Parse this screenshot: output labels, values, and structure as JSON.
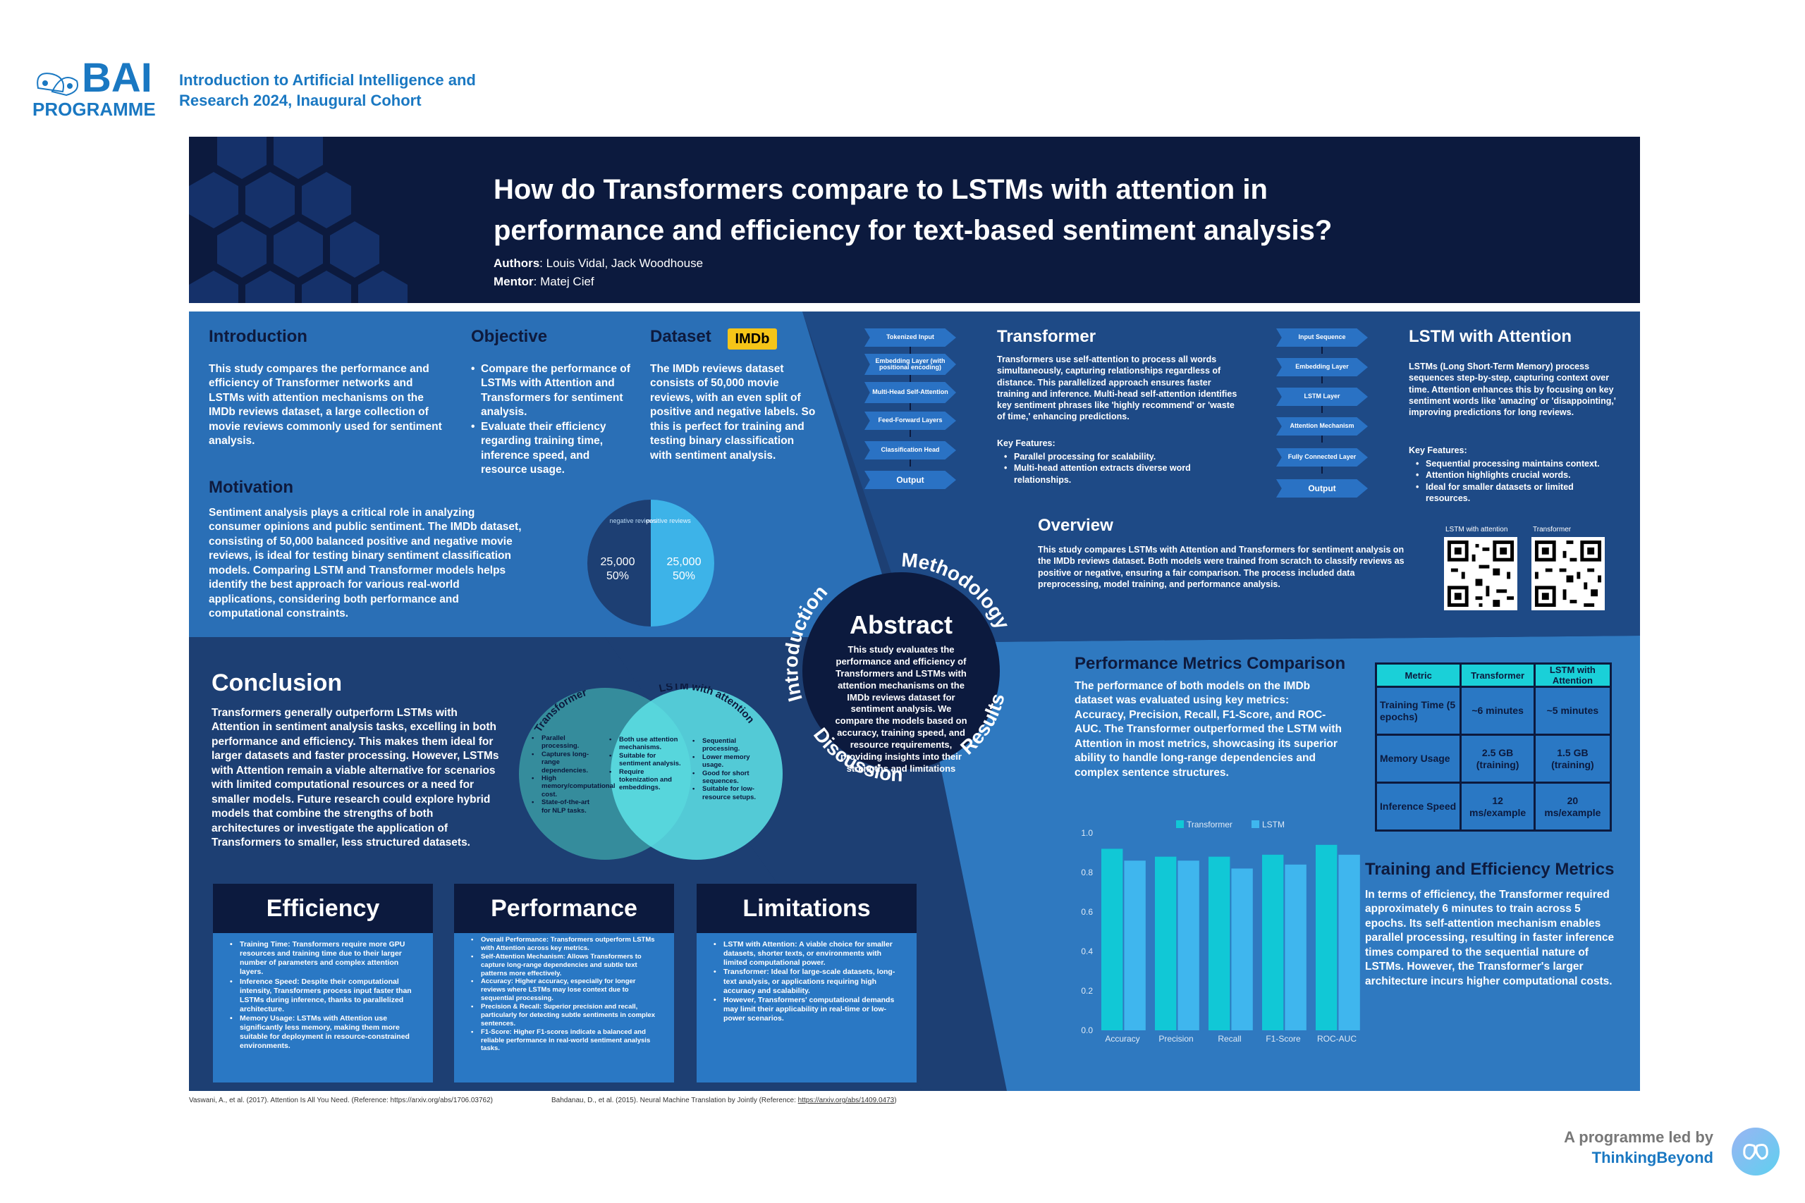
{
  "header": {
    "logo_bai": "BAI",
    "logo_programme": "PROGRAMME",
    "cohort_line1": "Introduction to Artificial Intelligence and",
    "cohort_line2": "Research 2024, Inaugural Cohort"
  },
  "title": {
    "line1": "How do Transformers compare to LSTMs with attention in",
    "line2": "performance and efficiency for text-based sentiment analysis?",
    "authors_label": "Authors",
    "authors": ": Louis Vidal, Jack Woodhouse",
    "mentor_label": "Mentor",
    "mentor": ": Matej Cief"
  },
  "introduction": {
    "heading": "Introduction",
    "text": "This study compares the performance and efficiency of Transformer networks and LSTMs with attention mechanisms on the IMDb reviews dataset, a large collection of movie reviews commonly used for sentiment analysis."
  },
  "objective": {
    "heading": "Objective",
    "items": [
      "Compare the performance of LSTMs with Attention and Transformers for sentiment analysis.",
      "Evaluate their efficiency regarding training time, inference speed, and resource usage."
    ]
  },
  "dataset": {
    "heading": "Dataset",
    "badge": "IMDb",
    "text": "The IMDb reviews dataset consists of 50,000 movie reviews, with an even split of positive and negative labels. So this is perfect for training and testing binary classification with sentiment analysis.",
    "pie": {
      "neg_label": "negative reviews",
      "pos_label": "positive reviews",
      "neg_value": "25,000",
      "neg_pct": "50%",
      "pos_value": "25,000",
      "pos_pct": "50%"
    }
  },
  "motivation": {
    "heading": "Motivation",
    "text": "Sentiment analysis plays a critical role in analyzing consumer opinions and public sentiment. The IMDb dataset, consisting of 50,000 balanced positive and negative movie reviews, is ideal for testing binary sentiment classification models. Comparing LSTM and Transformer models helps identify the best approach for various real-world applications, considering both performance and computational constraints."
  },
  "transformer": {
    "heading": "Transformer",
    "flow": [
      "Tokenized Input",
      "Embedding Layer (with positional encoding)",
      "Multi-Head Self-Attention",
      "Feed-Forward Layers",
      "Classification Head",
      "Output"
    ],
    "text": "Transformers use self-attention to process all words simultaneously, capturing relationships regardless of distance. This parallelized approach ensures faster training and inference. Multi-head self-attention identifies key sentiment phrases like 'highly recommend' or 'waste of time,' enhancing predictions.",
    "features_label": "Key Features:",
    "features": [
      "Parallel processing for scalability.",
      "Multi-head attention extracts diverse word relationships."
    ]
  },
  "lstm": {
    "heading": "LSTM with Attention",
    "flow": [
      "Input Sequence",
      "Embedding Layer",
      "LSTM Layer",
      "Attention Mechanism",
      "Fully Connected Layer",
      "Output"
    ],
    "text": "LSTMs (Long Short-Term Memory) process sequences step-by-step, capturing context over time. Attention enhances this by focusing on key sentiment words like 'amazing' or 'disappointing,' improving predictions for long reviews.",
    "features_label": "Key Features:",
    "features": [
      "Sequential processing maintains context.",
      "Attention highlights crucial words.",
      "Ideal for smaller datasets or limited resources."
    ]
  },
  "overview": {
    "heading": "Overview",
    "text": "This study compares LSTMs with Attention and Transformers for sentiment analysis on the IMDb reviews dataset. Both models were trained from scratch to classify reviews as positive or negative, ensuring a fair comparison. The process included data preprocessing, model training, and performance analysis.",
    "qr1_label": "LSTM with attention",
    "qr2_label": "Transformer"
  },
  "abstract": {
    "heading": "Abstract",
    "text": "This study evaluates the performance and efficiency of Transformers and LSTMs with attention mechanisms on the IMDb reviews dataset for sentiment analysis. We compare the models based on accuracy, training speed, and resource requirements, providing insights into their strengths and limitations",
    "ring_methodology": "Methodology",
    "ring_introduction": "Introduction",
    "ring_discussion": "Discussion",
    "ring_results": "Results"
  },
  "conclusion": {
    "heading": "Conclusion",
    "text": "Transformers generally outperform LSTMs with Attention in sentiment analysis tasks, excelling in both performance and efficiency. This makes them ideal for larger datasets and faster processing. However, LSTMs with Attention remain a viable alternative for scenarios with limited computational resources or a need for smaller models. Future research could explore hybrid models that combine the strengths of both architectures or investigate the application of Transformers to smaller, less structured datasets."
  },
  "venn": {
    "left_label": "Transformer",
    "right_label": "LSTM with attention",
    "left_items": [
      "Parallel processing.",
      "Captures long-range dependencies.",
      "High memory/computational cost.",
      "State-of-the-art for NLP tasks."
    ],
    "mid_items": [
      "Both use attention mechanisms.",
      "Suitable for sentiment analysis.",
      "Require tokenization and embeddings."
    ],
    "right_items": [
      "Sequential processing.",
      "Lower memory usage.",
      "Good for short sequences.",
      "Suitable for low-resource setups."
    ]
  },
  "efficiency": {
    "heading": "Efficiency",
    "items": [
      "Training Time: Transformers require more GPU resources and training time due to their larger number of parameters and complex attention layers.",
      "Inference Speed: Despite their computational intensity, Transformers process input faster than LSTMs during inference, thanks to parallelized architecture.",
      "Memory Usage: LSTMs with Attention use significantly less memory, making them more suitable for deployment in resource-constrained environments."
    ]
  },
  "performance": {
    "heading": "Performance",
    "items": [
      "Overall Performance: Transformers outperform LSTMs with Attention across key metrics.",
      "Self-Attention Mechanism: Allows Transformers to capture long-range dependencies and subtle text patterns more effectively.",
      "Accuracy: Higher accuracy, especially for longer reviews where LSTMs may lose context due to sequential processing.",
      "Precision & Recall: Superior precision and recall, particularly for detecting subtle sentiments in complex sentences.",
      "F1-Score: Higher F1-scores indicate a balanced and reliable performance in real-world sentiment analysis tasks."
    ]
  },
  "limitations": {
    "heading": "Limitations",
    "items": [
      "LSTM with Attention: A viable choice for smaller datasets, shorter texts, or environments with limited computational power.",
      "Transformer: Ideal for large-scale datasets, long-text analysis, or applications requiring high accuracy and scalability.",
      "However, Transformers' computational demands may limit their applicability in real-time or low-power scenarios."
    ]
  },
  "perf_metrics": {
    "heading": "Performance Metrics Comparison",
    "text": "The performance of both models on the IMDb dataset was evaluated using key metrics: Accuracy, Precision, Recall, F1-Score, and ROC-AUC. The Transformer outperformed the LSTM with Attention in most metrics, showcasing its superior ability to handle long-range dependencies and complex sentence structures."
  },
  "table": {
    "headers": [
      "Metric",
      "Transformer",
      "LSTM with Attention"
    ],
    "rows": [
      [
        "Training Time (5 epochs)",
        "~6 minutes",
        "~5 minutes"
      ],
      [
        "Memory Usage",
        "2.5 GB (training)",
        "1.5 GB (training)"
      ],
      [
        "Inference Speed",
        "12 ms/example",
        "20 ms/example"
      ]
    ]
  },
  "training": {
    "heading": "Training and Efficiency Metrics",
    "text": "In terms of efficiency, the Transformer required approximately 6 minutes to train across 5 epochs. Its self-attention mechanism enables parallel processing, resulting in faster inference times compared to the sequential nature of LSTMs. However, the Transformer's larger architecture incurs higher computational costs."
  },
  "chart_data": {
    "type": "bar",
    "categories": [
      "Accuracy",
      "Precision",
      "Recall",
      "F1-Score",
      "ROC-AUC"
    ],
    "series": [
      {
        "name": "Transformer",
        "values": [
          0.92,
          0.88,
          0.88,
          0.89,
          0.94
        ]
      },
      {
        "name": "LSTM",
        "values": [
          0.86,
          0.86,
          0.82,
          0.84,
          0.89
        ]
      }
    ],
    "ylim": [
      0,
      1.0
    ],
    "yticks": [
      "0.0",
      "0.2",
      "0.4",
      "0.6",
      "0.8",
      "1.0"
    ],
    "colors": {
      "Transformer": "#11c8d6",
      "LSTM": "#3fb6ee"
    },
    "legend": "top-center"
  },
  "references": {
    "ref1": "Vaswani, A., et al. (2017). Attention Is All You Need. (Reference: https://arxiv.org/abs/1706.03762)",
    "ref2_prefix": "Bahdanau, D., et al. (2015). Neural Machine Translation by Jointly (Reference: ",
    "ref2_link": "https://arxiv.org/abs/1409.0473",
    "ref2_suffix": ")"
  },
  "footer": {
    "led_by": "A programme led by",
    "org": "ThinkingBeyond"
  },
  "colors": {
    "navy": "#0c1a3e",
    "panel_dark": "#1d3f73",
    "panel_mid": "#2a6fb6",
    "accent_cyan": "#1ad0d8",
    "brand_blue": "#1a78c2"
  }
}
